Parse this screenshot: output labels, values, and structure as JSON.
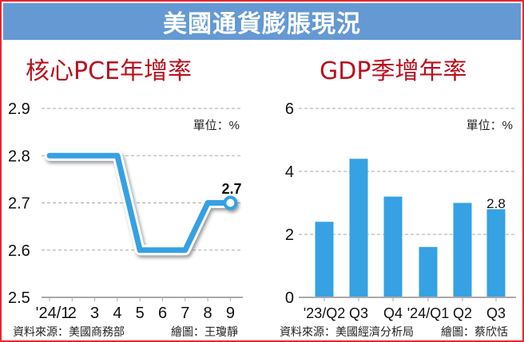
{
  "banner": {
    "title": "美國通貨膨脹現況",
    "color": "#6499d3"
  },
  "left_chart": {
    "title": "核心PCE年增率",
    "unit": "單位：%",
    "source": "資料來源：美國商務部",
    "credit": "繪圖：王瓊靜",
    "last_label": "2.7"
  },
  "right_chart": {
    "title": "GDP季增年率",
    "unit": "單位：%",
    "source": "資料來源：美國經濟分析局",
    "credit": "繪圖：蔡欣恬",
    "last_label": "2.8"
  },
  "colors": {
    "line": "#36a1e3",
    "bar": "#36a1e3",
    "title": "#b8111f",
    "border": "#e8262c"
  },
  "chart_data": [
    {
      "type": "line",
      "title": "核心PCE年增率",
      "xlabel": "",
      "ylabel": "單位：%",
      "categories": [
        "'24/1",
        "2",
        "3",
        "4",
        "5",
        "6",
        "7",
        "8",
        "9"
      ],
      "values": [
        2.8,
        2.8,
        2.8,
        2.8,
        2.6,
        2.6,
        2.6,
        2.7,
        2.7
      ],
      "yticks": [
        "2.5",
        "2.6",
        "2.7",
        "2.8",
        "2.9"
      ],
      "ylim": [
        2.5,
        2.9
      ],
      "grid": true,
      "annotations": [
        {
          "x": "9",
          "label": "2.7"
        }
      ]
    },
    {
      "type": "bar",
      "title": "GDP季增年率",
      "xlabel": "",
      "ylabel": "單位：%",
      "categories": [
        "'23/Q2",
        "Q3",
        "Q4",
        "'24/Q1",
        "Q2",
        "Q3"
      ],
      "values": [
        2.4,
        4.4,
        3.2,
        1.6,
        3.0,
        2.8
      ],
      "yticks": [
        "0",
        "2",
        "4",
        "6"
      ],
      "ylim": [
        0,
        6
      ],
      "grid": true,
      "annotations": [
        {
          "x": "Q3",
          "label": "2.8"
        }
      ]
    }
  ]
}
